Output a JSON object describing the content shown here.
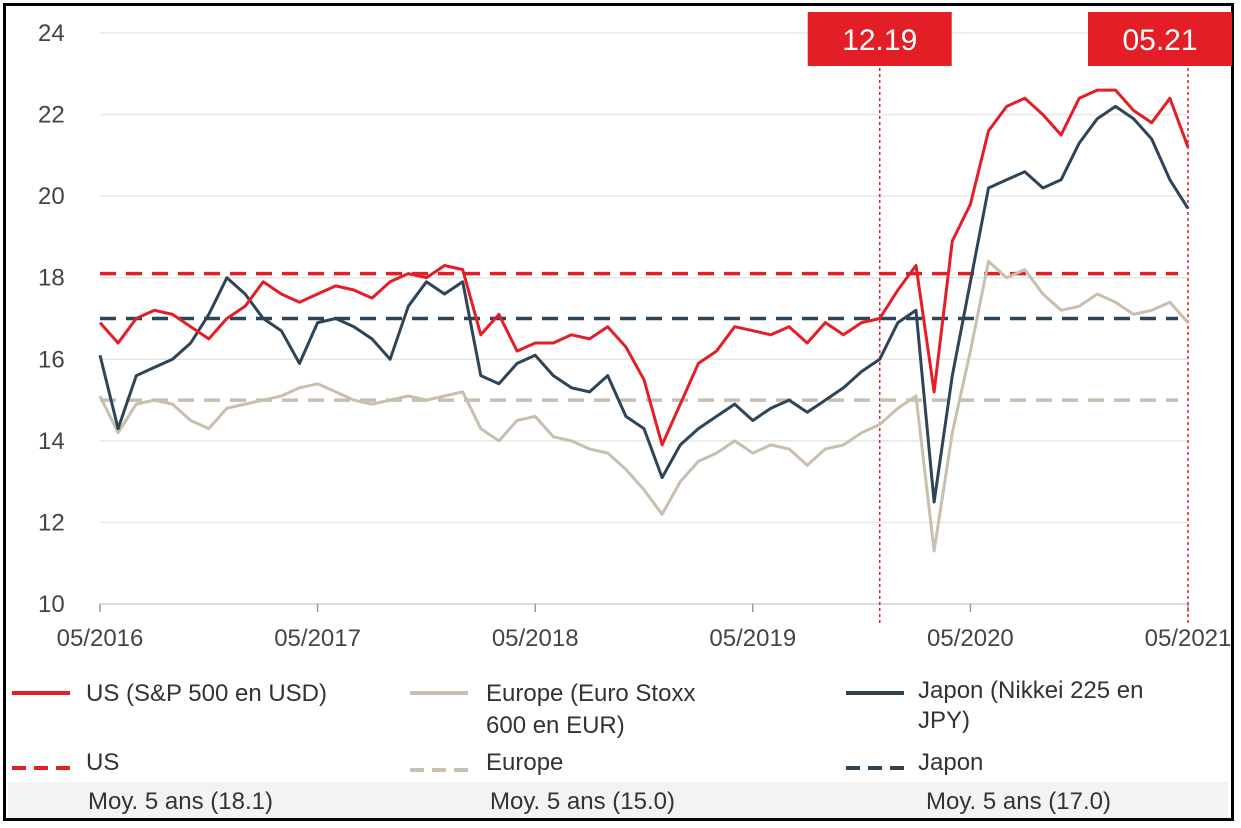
{
  "chart_data": {
    "type": "line",
    "xlim": [
      "05/2016",
      "05/2021"
    ],
    "ylim": [
      10,
      24
    ],
    "yticks": [
      10,
      12,
      14,
      16,
      18,
      20,
      22,
      24
    ],
    "xticks": [
      "05/2016",
      "05/2017",
      "05/2018",
      "05/2019",
      "05/2020",
      "05/2021"
    ],
    "grid": true,
    "markers": [
      {
        "label": "12.19",
        "date": "2019-12"
      },
      {
        "label": "05.21",
        "date": "2021-05"
      }
    ],
    "series": [
      {
        "name": "US (S&P 500 en USD)",
        "color": "#e31e26",
        "style": "solid",
        "points": [
          [
            "2016-05",
            16.9
          ],
          [
            "2016-06",
            16.4
          ],
          [
            "2016-07",
            17.0
          ],
          [
            "2016-08",
            17.2
          ],
          [
            "2016-09",
            17.1
          ],
          [
            "2016-10",
            16.8
          ],
          [
            "2016-11",
            16.5
          ],
          [
            "2016-12",
            17.0
          ],
          [
            "2017-01",
            17.3
          ],
          [
            "2017-02",
            17.9
          ],
          [
            "2017-03",
            17.6
          ],
          [
            "2017-04",
            17.4
          ],
          [
            "2017-05",
            17.6
          ],
          [
            "2017-06",
            17.8
          ],
          [
            "2017-07",
            17.7
          ],
          [
            "2017-08",
            17.5
          ],
          [
            "2017-09",
            17.9
          ],
          [
            "2017-10",
            18.1
          ],
          [
            "2017-11",
            18.0
          ],
          [
            "2017-12",
            18.3
          ],
          [
            "2018-01",
            18.2
          ],
          [
            "2018-02",
            16.6
          ],
          [
            "2018-03",
            17.1
          ],
          [
            "2018-04",
            16.2
          ],
          [
            "2018-05",
            16.4
          ],
          [
            "2018-06",
            16.4
          ],
          [
            "2018-07",
            16.6
          ],
          [
            "2018-08",
            16.5
          ],
          [
            "2018-09",
            16.8
          ],
          [
            "2018-10",
            16.3
          ],
          [
            "2018-11",
            15.5
          ],
          [
            "2018-12",
            13.9
          ],
          [
            "2019-01",
            14.9
          ],
          [
            "2019-02",
            15.9
          ],
          [
            "2019-03",
            16.2
          ],
          [
            "2019-04",
            16.8
          ],
          [
            "2019-05",
            16.7
          ],
          [
            "2019-06",
            16.6
          ],
          [
            "2019-07",
            16.8
          ],
          [
            "2019-08",
            16.4
          ],
          [
            "2019-09",
            16.9
          ],
          [
            "2019-10",
            16.6
          ],
          [
            "2019-11",
            16.9
          ],
          [
            "2019-12",
            17.0
          ],
          [
            "2020-01",
            17.7
          ],
          [
            "2020-02",
            18.3
          ],
          [
            "2020-03",
            15.2
          ],
          [
            "2020-04",
            18.9
          ],
          [
            "2020-05",
            19.8
          ],
          [
            "2020-06",
            21.6
          ],
          [
            "2020-07",
            22.2
          ],
          [
            "2020-08",
            22.4
          ],
          [
            "2020-09",
            22.0
          ],
          [
            "2020-10",
            21.5
          ],
          [
            "2020-11",
            22.4
          ],
          [
            "2020-12",
            22.6
          ],
          [
            "2021-01",
            22.6
          ],
          [
            "2021-02",
            22.1
          ],
          [
            "2021-03",
            21.8
          ],
          [
            "2021-04",
            22.4
          ],
          [
            "2021-05",
            21.2
          ]
        ]
      },
      {
        "name": "Europe (Euro Stoxx 600 en EUR)",
        "color": "#c8bfae",
        "style": "solid",
        "points": [
          [
            "2016-05",
            15.1
          ],
          [
            "2016-06",
            14.2
          ],
          [
            "2016-07",
            14.9
          ],
          [
            "2016-08",
            15.0
          ],
          [
            "2016-09",
            14.9
          ],
          [
            "2016-10",
            14.5
          ],
          [
            "2016-11",
            14.3
          ],
          [
            "2016-12",
            14.8
          ],
          [
            "2017-01",
            14.9
          ],
          [
            "2017-02",
            15.0
          ],
          [
            "2017-03",
            15.1
          ],
          [
            "2017-04",
            15.3
          ],
          [
            "2017-05",
            15.4
          ],
          [
            "2017-06",
            15.2
          ],
          [
            "2017-07",
            15.0
          ],
          [
            "2017-08",
            14.9
          ],
          [
            "2017-09",
            15.0
          ],
          [
            "2017-10",
            15.1
          ],
          [
            "2017-11",
            15.0
          ],
          [
            "2017-12",
            15.1
          ],
          [
            "2018-01",
            15.2
          ],
          [
            "2018-02",
            14.3
          ],
          [
            "2018-03",
            14.0
          ],
          [
            "2018-04",
            14.5
          ],
          [
            "2018-05",
            14.6
          ],
          [
            "2018-06",
            14.1
          ],
          [
            "2018-07",
            14.0
          ],
          [
            "2018-08",
            13.8
          ],
          [
            "2018-09",
            13.7
          ],
          [
            "2018-10",
            13.3
          ],
          [
            "2018-11",
            12.8
          ],
          [
            "2018-12",
            12.2
          ],
          [
            "2019-01",
            13.0
          ],
          [
            "2019-02",
            13.5
          ],
          [
            "2019-03",
            13.7
          ],
          [
            "2019-04",
            14.0
          ],
          [
            "2019-05",
            13.7
          ],
          [
            "2019-06",
            13.9
          ],
          [
            "2019-07",
            13.8
          ],
          [
            "2019-08",
            13.4
          ],
          [
            "2019-09",
            13.8
          ],
          [
            "2019-10",
            13.9
          ],
          [
            "2019-11",
            14.2
          ],
          [
            "2019-12",
            14.4
          ],
          [
            "2020-01",
            14.8
          ],
          [
            "2020-02",
            15.1
          ],
          [
            "2020-03",
            11.3
          ],
          [
            "2020-04",
            14.2
          ],
          [
            "2020-05",
            16.2
          ],
          [
            "2020-06",
            18.4
          ],
          [
            "2020-07",
            18.0
          ],
          [
            "2020-08",
            18.2
          ],
          [
            "2020-09",
            17.6
          ],
          [
            "2020-10",
            17.2
          ],
          [
            "2020-11",
            17.3
          ],
          [
            "2020-12",
            17.6
          ],
          [
            "2021-01",
            17.4
          ],
          [
            "2021-02",
            17.1
          ],
          [
            "2021-03",
            17.2
          ],
          [
            "2021-04",
            17.4
          ],
          [
            "2021-05",
            16.9
          ]
        ]
      },
      {
        "name": "Japon (Nikkei 225 en JPY)",
        "color": "#2e4457",
        "style": "solid",
        "points": [
          [
            "2016-05",
            16.1
          ],
          [
            "2016-06",
            14.3
          ],
          [
            "2016-07",
            15.6
          ],
          [
            "2016-08",
            15.8
          ],
          [
            "2016-09",
            16.0
          ],
          [
            "2016-10",
            16.4
          ],
          [
            "2016-11",
            17.1
          ],
          [
            "2016-12",
            18.0
          ],
          [
            "2017-01",
            17.6
          ],
          [
            "2017-02",
            17.0
          ],
          [
            "2017-03",
            16.7
          ],
          [
            "2017-04",
            15.9
          ],
          [
            "2017-05",
            16.9
          ],
          [
            "2017-06",
            17.0
          ],
          [
            "2017-07",
            16.8
          ],
          [
            "2017-08",
            16.5
          ],
          [
            "2017-09",
            16.0
          ],
          [
            "2017-10",
            17.3
          ],
          [
            "2017-11",
            17.9
          ],
          [
            "2017-12",
            17.6
          ],
          [
            "2018-01",
            17.9
          ],
          [
            "2018-02",
            15.6
          ],
          [
            "2018-03",
            15.4
          ],
          [
            "2018-04",
            15.9
          ],
          [
            "2018-05",
            16.1
          ],
          [
            "2018-06",
            15.6
          ],
          [
            "2018-07",
            15.3
          ],
          [
            "2018-08",
            15.2
          ],
          [
            "2018-09",
            15.6
          ],
          [
            "2018-10",
            14.6
          ],
          [
            "2018-11",
            14.3
          ],
          [
            "2018-12",
            13.1
          ],
          [
            "2019-01",
            13.9
          ],
          [
            "2019-02",
            14.3
          ],
          [
            "2019-03",
            14.6
          ],
          [
            "2019-04",
            14.9
          ],
          [
            "2019-05",
            14.5
          ],
          [
            "2019-06",
            14.8
          ],
          [
            "2019-07",
            15.0
          ],
          [
            "2019-08",
            14.7
          ],
          [
            "2019-09",
            15.0
          ],
          [
            "2019-10",
            15.3
          ],
          [
            "2019-11",
            15.7
          ],
          [
            "2019-12",
            16.0
          ],
          [
            "2020-01",
            16.9
          ],
          [
            "2020-02",
            17.2
          ],
          [
            "2020-03",
            12.5
          ],
          [
            "2020-04",
            15.6
          ],
          [
            "2020-05",
            17.9
          ],
          [
            "2020-06",
            20.2
          ],
          [
            "2020-07",
            20.4
          ],
          [
            "2020-08",
            20.6
          ],
          [
            "2020-09",
            20.2
          ],
          [
            "2020-10",
            20.4
          ],
          [
            "2020-11",
            21.3
          ],
          [
            "2020-12",
            21.9
          ],
          [
            "2021-01",
            22.2
          ],
          [
            "2021-02",
            21.9
          ],
          [
            "2021-03",
            21.4
          ],
          [
            "2021-04",
            20.4
          ],
          [
            "2021-05",
            19.7
          ]
        ]
      },
      {
        "name": "US",
        "color": "#e31e26",
        "style": "dashed",
        "value": 18.1,
        "label": "Moy. 5 ans (18.1)"
      },
      {
        "name": "Europe",
        "color": "#c8bfae",
        "style": "dashed",
        "value": 15.0,
        "label": "Moy. 5 ans (15.0)"
      },
      {
        "name": "Japon",
        "color": "#2e4457",
        "style": "dashed",
        "value": 17.0,
        "label": "Moy. 5 ans (17.0)"
      }
    ]
  },
  "legend": {
    "us_line": "US (S&P 500 en USD)",
    "europe_line_1": "Europe (Euro Stoxx",
    "europe_line_2": "600 en EUR)",
    "japan_line_1": "Japon (Nikkei 225 en",
    "japan_line_2": "JPY)",
    "us_avg": "US",
    "europe_avg": "Europe",
    "japan_avg": "Japon",
    "us_avg_value": "Moy. 5 ans (18.1)",
    "europe_avg_value": "Moy. 5 ans (15.0)",
    "japan_avg_value": "Moy. 5 ans (17.0)"
  }
}
